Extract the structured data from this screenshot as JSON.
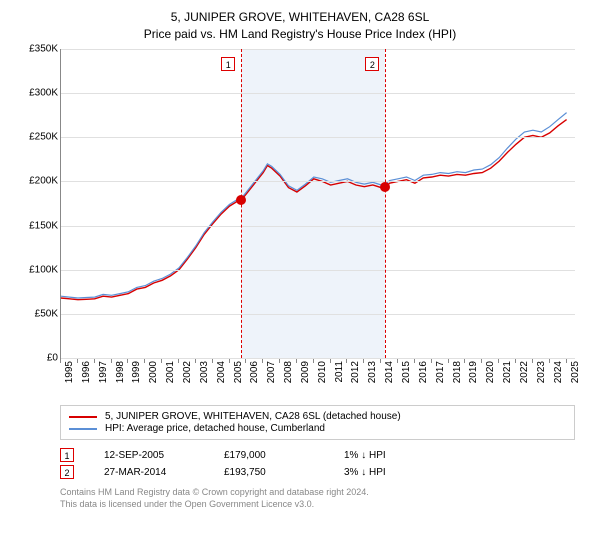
{
  "title": "5, JUNIPER GROVE, WHITEHAVEN, CA28 6SL",
  "subtitle": "Price paid vs. HM Land Registry's House Price Index (HPI)",
  "chart": {
    "type": "line",
    "x_range": [
      1995,
      2025.5
    ],
    "y_range": [
      0,
      350000
    ],
    "y_ticks": [
      0,
      50000,
      100000,
      150000,
      200000,
      250000,
      300000,
      350000
    ],
    "y_tick_labels": [
      "£0",
      "£50K",
      "£100K",
      "£150K",
      "£200K",
      "£250K",
      "£300K",
      "£350K"
    ],
    "x_ticks": [
      1995,
      1996,
      1997,
      1998,
      1999,
      2000,
      2001,
      2002,
      2003,
      2004,
      2005,
      2006,
      2007,
      2008,
      2009,
      2010,
      2011,
      2012,
      2013,
      2014,
      2015,
      2016,
      2017,
      2018,
      2019,
      2020,
      2021,
      2022,
      2023,
      2024,
      2025
    ],
    "grid_color": "#e0e0e0",
    "background_color": "#ffffff",
    "shaded_band": {
      "x_start": 2005.7,
      "x_end": 2014.25,
      "color": "#eef3fa"
    },
    "series": [
      {
        "name": "property",
        "label": "5, JUNIPER GROVE, WHITEHAVEN, CA28 6SL (detached house)",
        "color": "#d70000",
        "line_width": 1.4,
        "data": [
          [
            1995,
            68000
          ],
          [
            1995.5,
            67000
          ],
          [
            1996,
            66000
          ],
          [
            1996.5,
            66500
          ],
          [
            1997,
            67000
          ],
          [
            1997.5,
            70000
          ],
          [
            1998,
            69000
          ],
          [
            1998.5,
            71000
          ],
          [
            1999,
            73000
          ],
          [
            1999.5,
            78000
          ],
          [
            2000,
            80000
          ],
          [
            2000.5,
            85000
          ],
          [
            2001,
            88000
          ],
          [
            2001.5,
            93000
          ],
          [
            2002,
            100000
          ],
          [
            2002.5,
            112000
          ],
          [
            2003,
            125000
          ],
          [
            2003.5,
            140000
          ],
          [
            2004,
            152000
          ],
          [
            2004.5,
            163000
          ],
          [
            2005,
            172000
          ],
          [
            2005.5,
            178000
          ],
          [
            2005.7,
            179000
          ],
          [
            2006,
            186000
          ],
          [
            2006.5,
            198000
          ],
          [
            2007,
            210000
          ],
          [
            2007.25,
            218000
          ],
          [
            2007.5,
            215000
          ],
          [
            2008,
            206000
          ],
          [
            2008.5,
            193000
          ],
          [
            2009,
            188000
          ],
          [
            2009.5,
            195000
          ],
          [
            2010,
            203000
          ],
          [
            2010.5,
            200000
          ],
          [
            2011,
            196000
          ],
          [
            2011.5,
            198000
          ],
          [
            2012,
            200000
          ],
          [
            2012.5,
            196000
          ],
          [
            2013,
            194000
          ],
          [
            2013.5,
            196000
          ],
          [
            2014,
            193000
          ],
          [
            2014.25,
            193750
          ],
          [
            2014.5,
            198000
          ],
          [
            2015,
            200000
          ],
          [
            2015.5,
            202000
          ],
          [
            2016,
            198000
          ],
          [
            2016.5,
            204000
          ],
          [
            2017,
            205000
          ],
          [
            2017.5,
            207000
          ],
          [
            2018,
            206000
          ],
          [
            2018.5,
            208000
          ],
          [
            2019,
            207000
          ],
          [
            2019.5,
            209000
          ],
          [
            2020,
            210000
          ],
          [
            2020.5,
            215000
          ],
          [
            2021,
            223000
          ],
          [
            2021.5,
            233000
          ],
          [
            2022,
            242000
          ],
          [
            2022.5,
            250000
          ],
          [
            2023,
            252000
          ],
          [
            2023.5,
            250000
          ],
          [
            2024,
            255000
          ],
          [
            2024.5,
            263000
          ],
          [
            2025,
            270000
          ]
        ]
      },
      {
        "name": "hpi",
        "label": "HPI: Average price, detached house, Cumberland",
        "color": "#5b8fd6",
        "line_width": 1.2,
        "data": [
          [
            1995,
            70000
          ],
          [
            1995.5,
            69000
          ],
          [
            1996,
            68000
          ],
          [
            1996.5,
            68500
          ],
          [
            1997,
            69000
          ],
          [
            1997.5,
            72000
          ],
          [
            1998,
            71000
          ],
          [
            1998.5,
            73000
          ],
          [
            1999,
            75000
          ],
          [
            1999.5,
            80000
          ],
          [
            2000,
            82000
          ],
          [
            2000.5,
            87000
          ],
          [
            2001,
            90000
          ],
          [
            2001.5,
            95000
          ],
          [
            2002,
            102000
          ],
          [
            2002.5,
            114000
          ],
          [
            2003,
            127000
          ],
          [
            2003.5,
            142000
          ],
          [
            2004,
            154000
          ],
          [
            2004.5,
            165000
          ],
          [
            2005,
            174000
          ],
          [
            2005.5,
            180000
          ],
          [
            2005.7,
            181000
          ],
          [
            2006,
            188000
          ],
          [
            2006.5,
            200000
          ],
          [
            2007,
            212000
          ],
          [
            2007.25,
            220000
          ],
          [
            2007.5,
            217000
          ],
          [
            2008,
            208000
          ],
          [
            2008.5,
            195000
          ],
          [
            2009,
            190000
          ],
          [
            2009.5,
            197000
          ],
          [
            2010,
            205000
          ],
          [
            2010.5,
            203000
          ],
          [
            2011,
            199000
          ],
          [
            2011.5,
            201000
          ],
          [
            2012,
            203000
          ],
          [
            2012.5,
            199000
          ],
          [
            2013,
            197000
          ],
          [
            2013.5,
            199000
          ],
          [
            2014,
            196000
          ],
          [
            2014.25,
            197000
          ],
          [
            2014.5,
            201000
          ],
          [
            2015,
            203000
          ],
          [
            2015.5,
            205000
          ],
          [
            2016,
            201000
          ],
          [
            2016.5,
            207000
          ],
          [
            2017,
            208000
          ],
          [
            2017.5,
            210000
          ],
          [
            2018,
            209000
          ],
          [
            2018.5,
            211000
          ],
          [
            2019,
            210000
          ],
          [
            2019.5,
            213000
          ],
          [
            2020,
            214000
          ],
          [
            2020.5,
            219000
          ],
          [
            2021,
            227000
          ],
          [
            2021.5,
            238000
          ],
          [
            2022,
            248000
          ],
          [
            2022.5,
            256000
          ],
          [
            2023,
            258000
          ],
          [
            2023.5,
            256000
          ],
          [
            2024,
            262000
          ],
          [
            2024.5,
            270000
          ],
          [
            2025,
            278000
          ]
        ]
      }
    ],
    "ref_lines": [
      {
        "id": "1",
        "x": 2005.7
      },
      {
        "id": "2",
        "x": 2014.25
      }
    ],
    "markers": [
      {
        "x": 2005.7,
        "y": 179000,
        "color": "#d70000"
      },
      {
        "x": 2014.25,
        "y": 193750,
        "color": "#d70000"
      }
    ]
  },
  "sales": [
    {
      "id": "1",
      "date": "12-SEP-2005",
      "price": "£179,000",
      "delta": "1%",
      "direction": "down",
      "vs": "HPI"
    },
    {
      "id": "2",
      "date": "27-MAR-2014",
      "price": "£193,750",
      "delta": "3%",
      "direction": "down",
      "vs": "HPI"
    }
  ],
  "footnote_line1": "Contains HM Land Registry data © Crown copyright and database right 2024.",
  "footnote_line2": "This data is licensed under the Open Government Licence v3.0."
}
